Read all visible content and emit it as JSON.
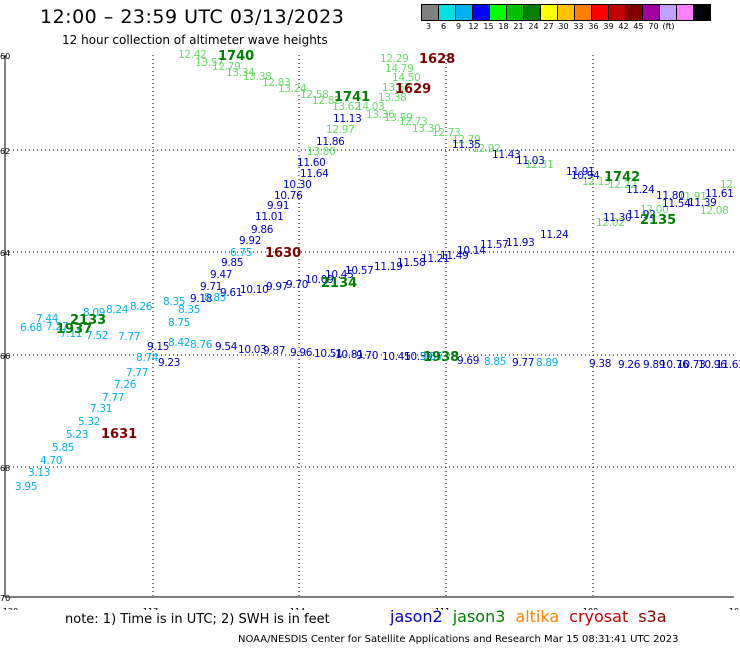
{
  "header": {
    "title": "12:00 – 23:59 UTC 03/13/2023",
    "subtitle": "12 hour collection of altimeter wave heights"
  },
  "color_scale": {
    "labels": [
      "3",
      "6",
      "9",
      "12",
      "15",
      "18",
      "21",
      "24",
      "27",
      "30",
      "33",
      "36",
      "39",
      "42",
      "45",
      "70",
      "(ft)"
    ],
    "colors": [
      "#808080",
      "#00e0e0",
      "#00b0f0",
      "#0000ff",
      "#00ff00",
      "#00c000",
      "#008000",
      "#ffff00",
      "#ffc000",
      "#ff8000",
      "#ff0000",
      "#c00000",
      "#800000",
      "#a000a0",
      "#c0a0ff",
      "#ff80ff",
      "#000000"
    ]
  },
  "map": {
    "lat_labels": [
      "60",
      "62",
      "64",
      "66",
      "68",
      "70"
    ],
    "lon_labels": [
      "-120",
      "-117",
      "-114",
      "-111",
      "-108",
      "-10"
    ],
    "time_labels": [
      {
        "text": "1740",
        "color": "#008000"
      },
      {
        "text": "1628",
        "color": "#800000"
      },
      {
        "text": "1741",
        "color": "#008000"
      },
      {
        "text": "1629",
        "color": "#800000"
      },
      {
        "text": "1742",
        "color": "#008000"
      },
      {
        "text": "2135",
        "color": "#008000"
      },
      {
        "text": "1630",
        "color": "#800000"
      },
      {
        "text": "2134",
        "color": "#008000"
      },
      {
        "text": "2133",
        "color": "#008000"
      },
      {
        "text": "1937",
        "color": "#008000"
      },
      {
        "text": "1938",
        "color": "#008000"
      },
      {
        "text": "1631",
        "color": "#800000"
      }
    ],
    "readings": [
      {
        "v": "12.42",
        "c": "#66dd66"
      },
      {
        "v": "13.57",
        "c": "#66dd66"
      },
      {
        "v": "12.79",
        "c": "#66dd66"
      },
      {
        "v": "13.34",
        "c": "#66dd66"
      },
      {
        "v": "13.38",
        "c": "#66dd66"
      },
      {
        "v": "12.83",
        "c": "#66dd66"
      },
      {
        "v": "13.24",
        "c": "#66dd66"
      },
      {
        "v": "12.58",
        "c": "#66dd66"
      },
      {
        "v": "12.82",
        "c": "#66dd66"
      },
      {
        "v": "13.62",
        "c": "#66dd66"
      },
      {
        "v": "12.29",
        "c": "#66dd66"
      },
      {
        "v": "14.79",
        "c": "#66dd66"
      },
      {
        "v": "14.50",
        "c": "#66dd66"
      },
      {
        "v": "13.67",
        "c": "#66dd66"
      },
      {
        "v": "13.38",
        "c": "#66dd66"
      },
      {
        "v": "14.03",
        "c": "#66dd66"
      },
      {
        "v": "13.36",
        "c": "#66dd66"
      },
      {
        "v": "13.59",
        "c": "#66dd66"
      },
      {
        "v": "12.73",
        "c": "#66dd66"
      },
      {
        "v": "13.30",
        "c": "#66dd66"
      },
      {
        "v": "12.73",
        "c": "#66dd66"
      },
      {
        "v": "12.79",
        "c": "#66dd66"
      },
      {
        "v": "12.92",
        "c": "#66dd66"
      },
      {
        "v": "12.31",
        "c": "#66dd66"
      },
      {
        "v": "12.13",
        "c": "#66dd66"
      },
      {
        "v": "12.22",
        "c": "#66dd66"
      },
      {
        "v": "11.91",
        "c": "#66dd66"
      },
      {
        "v": "12.08",
        "c": "#66dd66"
      },
      {
        "v": "12.00",
        "c": "#66dd66"
      },
      {
        "v": "12.02",
        "c": "#66dd66"
      },
      {
        "v": "12.",
        "c": "#66dd66"
      },
      {
        "v": "12.97",
        "c": "#66dd66"
      },
      {
        "v": "11.13",
        "c": "#0000cc"
      },
      {
        "v": "11.86",
        "c": "#0000cc"
      },
      {
        "v": "11.35",
        "c": "#0000cc"
      },
      {
        "v": "11.43",
        "c": "#0000cc"
      },
      {
        "v": "11.03",
        "c": "#0000cc"
      },
      {
        "v": "11.91",
        "c": "#0000cc"
      },
      {
        "v": "10.94",
        "c": "#0000cc"
      },
      {
        "v": "11.24",
        "c": "#0000cc"
      },
      {
        "v": "11.80",
        "c": "#0000cc"
      },
      {
        "v": "11.54",
        "c": "#0000cc"
      },
      {
        "v": "11.39",
        "c": "#0000cc"
      },
      {
        "v": "11.61",
        "c": "#0000cc"
      },
      {
        "v": "11.30",
        "c": "#0000cc"
      },
      {
        "v": "11.92",
        "c": "#0000cc"
      },
      {
        "v": "13.80",
        "c": "#66dd66"
      },
      {
        "v": "11.60",
        "c": "#0000cc"
      },
      {
        "v": "11.64",
        "c": "#0000cc"
      },
      {
        "v": "10.30",
        "c": "#0000cc"
      },
      {
        "v": "10.76",
        "c": "#0000cc"
      },
      {
        "v": "9.91",
        "c": "#0000cc"
      },
      {
        "v": "11.01",
        "c": "#0000cc"
      },
      {
        "v": "9.86",
        "c": "#0000cc"
      },
      {
        "v": "9.92",
        "c": "#0000cc"
      },
      {
        "v": "9.85",
        "c": "#0000cc"
      },
      {
        "v": "9.47",
        "c": "#0000cc"
      },
      {
        "v": "9.71",
        "c": "#0000cc"
      },
      {
        "v": "9.18",
        "c": "#0000cc"
      },
      {
        "v": "9.61",
        "c": "#0000cc"
      },
      {
        "v": "9.23",
        "c": "#0000cc"
      },
      {
        "v": "9.15",
        "c": "#0000cc"
      },
      {
        "v": "6.75",
        "c": "#00b0f0"
      },
      {
        "v": "8.35",
        "c": "#00b0f0"
      },
      {
        "v": "8.83",
        "c": "#00b0f0"
      },
      {
        "v": "8.35",
        "c": "#00b0f0"
      },
      {
        "v": "8.75",
        "c": "#00b0f0"
      },
      {
        "v": "8.26",
        "c": "#00b0f0"
      },
      {
        "v": "8.24",
        "c": "#00b0f0"
      },
      {
        "v": "8.09",
        "c": "#00b0f0"
      },
      {
        "v": "7.44",
        "c": "#00b0f0"
      },
      {
        "v": "7.27",
        "c": "#00b0f0"
      },
      {
        "v": "6.68",
        "c": "#00b0f0"
      },
      {
        "v": "7.11",
        "c": "#00b0f0"
      },
      {
        "v": "7.52",
        "c": "#00b0f0"
      },
      {
        "v": "7.77",
        "c": "#00b0f0"
      },
      {
        "v": "8.42",
        "c": "#00b0f0"
      },
      {
        "v": "8.76",
        "c": "#00b0f0"
      },
      {
        "v": "8.74",
        "c": "#00b0f0"
      },
      {
        "v": "7.77",
        "c": "#00b0f0"
      },
      {
        "v": "7.26",
        "c": "#00b0f0"
      },
      {
        "v": "7.77",
        "c": "#00b0f0"
      },
      {
        "v": "7.31",
        "c": "#00b0f0"
      },
      {
        "v": "5.32",
        "c": "#00b0f0"
      },
      {
        "v": "5.23",
        "c": "#00b0f0"
      },
      {
        "v": "5.85",
        "c": "#00b0f0"
      },
      {
        "v": "4.70",
        "c": "#00b0f0"
      },
      {
        "v": "3.13",
        "c": "#00b0f0"
      },
      {
        "v": "3.95",
        "c": "#00b0f0"
      },
      {
        "v": "10.10",
        "c": "#0000cc"
      },
      {
        "v": "9.97",
        "c": "#0000cc"
      },
      {
        "v": "9.70",
        "c": "#0000cc"
      },
      {
        "v": "10.09",
        "c": "#0000cc"
      },
      {
        "v": "10.45",
        "c": "#0000cc"
      },
      {
        "v": "10.57",
        "c": "#0000cc"
      },
      {
        "v": "11.19",
        "c": "#0000cc"
      },
      {
        "v": "11.58",
        "c": "#0000cc"
      },
      {
        "v": "11.21",
        "c": "#0000cc"
      },
      {
        "v": "11.49",
        "c": "#0000cc"
      },
      {
        "v": "10.14",
        "c": "#0000cc"
      },
      {
        "v": "11.57",
        "c": "#0000cc"
      },
      {
        "v": "11.93",
        "c": "#0000cc"
      },
      {
        "v": "11.24",
        "c": "#0000cc"
      },
      {
        "v": "9.54",
        "c": "#0000cc"
      },
      {
        "v": "10.03",
        "c": "#0000cc"
      },
      {
        "v": "9.87",
        "c": "#0000cc"
      },
      {
        "v": "9.96",
        "c": "#0000cc"
      },
      {
        "v": "10.51",
        "c": "#0000cc"
      },
      {
        "v": "10.81",
        "c": "#0000cc"
      },
      {
        "v": "9.70",
        "c": "#0000cc"
      },
      {
        "v": "10.45",
        "c": "#0000cc"
      },
      {
        "v": "10.39",
        "c": "#0000cc"
      },
      {
        "v": "9.69",
        "c": "#0000cc"
      },
      {
        "v": "9.77",
        "c": "#0000cc"
      },
      {
        "v": "9.38",
        "c": "#0000cc"
      },
      {
        "v": "9.26",
        "c": "#0000cc"
      },
      {
        "v": "9.89",
        "c": "#0000cc"
      },
      {
        "v": "10.76",
        "c": "#0000cc"
      },
      {
        "v": "10.73",
        "c": "#0000cc"
      },
      {
        "v": "10.96",
        "c": "#0000cc"
      },
      {
        "v": "11.63",
        "c": "#0000cc"
      },
      {
        "v": "8.85",
        "c": "#00b0f0"
      },
      {
        "v": "8.89",
        "c": "#00b0f0"
      },
      {
        "v": "9.85",
        "c": "#00b0f0"
      }
    ]
  },
  "note": "note:  1) Time is in UTC;  2) SWH is in feet",
  "legend": [
    {
      "label": "jason2",
      "color": "#0000cc"
    },
    {
      "label": "jason3",
      "color": "#008000"
    },
    {
      "label": "altika",
      "color": "#ff8000"
    },
    {
      "label": "cryosat",
      "color": "#cc0000"
    },
    {
      "label": "s3a",
      "color": "#800000"
    }
  ],
  "footer": "NOAA/NESDIS Center for Satellite Applications and Research    Mar 15 08:31:41 UTC 2023"
}
